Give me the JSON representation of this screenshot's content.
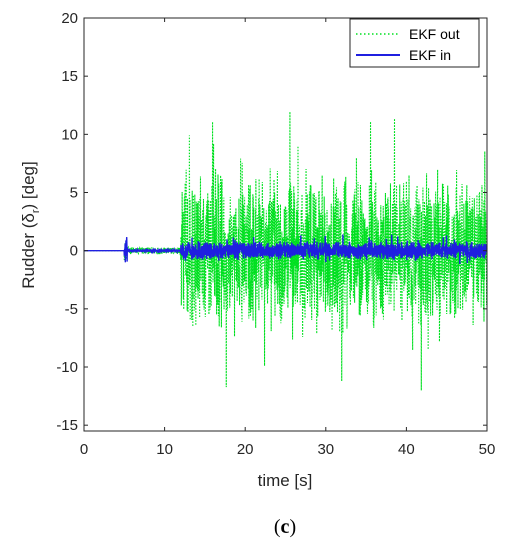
{
  "chart_data": {
    "type": "line",
    "xlabel": "time [s]",
    "ylabel_main": "Rudder (δ",
    "ylabel_sub": "r",
    "ylabel_tail": ") [deg]",
    "xlim": [
      0,
      50
    ],
    "ylim": [
      -15.5,
      20
    ],
    "xticks": [
      0,
      10,
      20,
      30,
      40,
      50
    ],
    "yticks": [
      -15,
      -10,
      -5,
      0,
      5,
      10,
      15,
      20
    ],
    "grid": false,
    "legend_position": "top-right",
    "caption": "(c)",
    "series": [
      {
        "name": "EKF out",
        "color": "#00e020",
        "style": "dotted",
        "segments": [
          {
            "x_range": [
              0,
              5
            ],
            "amplitude": 0
          },
          {
            "x_range": [
              5,
              5.4
            ],
            "amplitude": 0.8
          },
          {
            "x_range": [
              5.4,
              12
            ],
            "amplitude": 0.3
          },
          {
            "x_range": [
              12,
              50
            ],
            "amplitude_typical": 6,
            "max": 14.5,
            "min": -15
          }
        ]
      },
      {
        "name": "EKF in",
        "color": "#1f1fe0",
        "style": "solid",
        "segments": [
          {
            "x_range": [
              0,
              5
            ],
            "amplitude": 0
          },
          {
            "x_range": [
              5,
              5.4
            ],
            "amplitude": 1.2
          },
          {
            "x_range": [
              5.4,
              12
            ],
            "amplitude": 0.1
          },
          {
            "x_range": [
              12,
              50
            ],
            "amplitude_typical": 0.7,
            "max": 1.5,
            "min": -1.5
          }
        ]
      }
    ]
  }
}
